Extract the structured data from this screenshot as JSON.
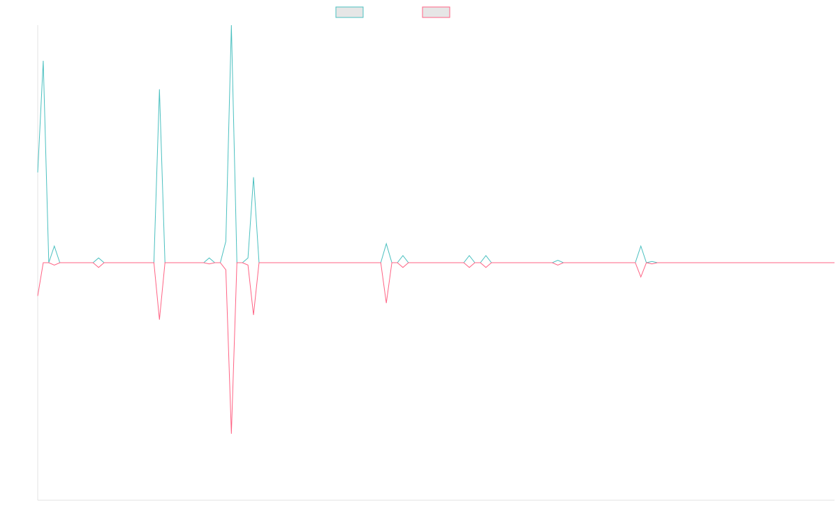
{
  "chart_data": {
    "type": "line",
    "title": "",
    "xlabel": "",
    "ylabel": "",
    "ylim": [
      -100,
      100
    ],
    "grid": false,
    "legend": "top-center",
    "series": [
      {
        "color": "#4bc0c0",
        "values": [
          38,
          85,
          0,
          7,
          0,
          0,
          0,
          0,
          0,
          0,
          0,
          2,
          0,
          0,
          0,
          0,
          0,
          0,
          0,
          0,
          0,
          0,
          73,
          0,
          0,
          0,
          0,
          0,
          0,
          0,
          0,
          2,
          0,
          0,
          9,
          100,
          0,
          0,
          2,
          36,
          0,
          0,
          0,
          0,
          0,
          0,
          0,
          0,
          0,
          0,
          0,
          0,
          0,
          0,
          0,
          0,
          0,
          0,
          0,
          0,
          0,
          0,
          0,
          8,
          0,
          0,
          3,
          0,
          0,
          0,
          0,
          0,
          0,
          0,
          0,
          0,
          0,
          0,
          3,
          0,
          0,
          3,
          0,
          0,
          0,
          0,
          0,
          0,
          0,
          0,
          0,
          0,
          0,
          0,
          1,
          0,
          0,
          0,
          0,
          0,
          0,
          0,
          0,
          0,
          0,
          0,
          0,
          0,
          0,
          7,
          0,
          0.5,
          0,
          0,
          0,
          0,
          0,
          0,
          0,
          0,
          0,
          0,
          0,
          0,
          0,
          0,
          0,
          0,
          0,
          0,
          0,
          0,
          0,
          0,
          0,
          0,
          0,
          0,
          0,
          0,
          0,
          0,
          0,
          0,
          0
        ]
      },
      {
        "color": "#ff6384",
        "values": [
          -14,
          0,
          0,
          -1,
          0,
          0,
          0,
          0,
          0,
          0,
          0,
          -2,
          0,
          0,
          0,
          0,
          0,
          0,
          0,
          0,
          0,
          0,
          -24,
          0,
          0,
          0,
          0,
          0,
          0,
          0,
          0,
          -0.5,
          0,
          0,
          -3,
          -72,
          0,
          0,
          -1,
          -22,
          0,
          0,
          0,
          0,
          0,
          0,
          0,
          0,
          0,
          0,
          0,
          0,
          0,
          0,
          0,
          0,
          0,
          0,
          0,
          0,
          0,
          0,
          0,
          -17,
          0,
          0,
          -2,
          0,
          0,
          0,
          0,
          0,
          0,
          0,
          0,
          0,
          0,
          0,
          -2,
          0,
          0,
          -2,
          0,
          0,
          0,
          0,
          0,
          0,
          0,
          0,
          0,
          0,
          0,
          0,
          -1,
          0,
          0,
          0,
          0,
          0,
          0,
          0,
          0,
          0,
          0,
          0,
          0,
          0,
          0,
          -6,
          0,
          -0.5,
          0,
          0,
          0,
          0,
          0,
          0,
          0,
          0,
          0,
          0,
          0,
          0,
          0,
          0,
          0,
          0,
          0,
          0,
          0,
          0,
          0,
          0,
          0,
          0,
          0,
          0,
          0,
          0,
          0,
          0,
          0,
          0,
          0
        ]
      }
    ]
  }
}
